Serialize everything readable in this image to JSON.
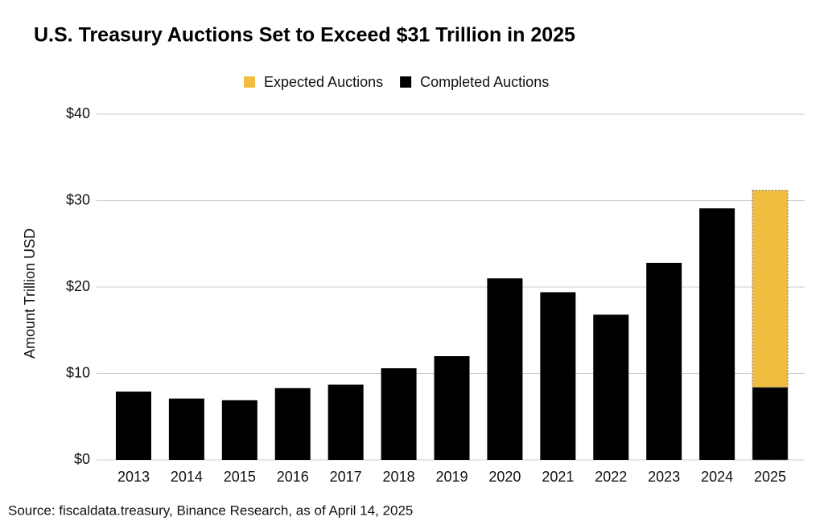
{
  "chart_data": {
    "type": "stacked_bar",
    "title": "U.S. Treasury Auctions Set to Exceed $31 Trillion in 2025",
    "y_label": "Amount Trillion USD",
    "source": "Source: fiscaldata.treasury, Binance Research, as of April 14, 2025",
    "categories": [
      "2013",
      "2014",
      "2015",
      "2016",
      "2017",
      "2018",
      "2019",
      "2020",
      "2021",
      "2022",
      "2023",
      "2024",
      "2025"
    ],
    "series": [
      {
        "name": "Expected Auctions",
        "color": "#f0bd40",
        "values": [
          null,
          null,
          null,
          null,
          null,
          null,
          null,
          null,
          null,
          null,
          null,
          null,
          22.8
        ]
      },
      {
        "name": "Completed Auctions",
        "color": "#000000",
        "values": [
          7.9,
          7.1,
          6.9,
          8.3,
          8.7,
          10.6,
          12.0,
          21.0,
          19.4,
          16.8,
          22.8,
          29.1,
          8.4
        ]
      }
    ],
    "ylim": [
      0,
      40
    ],
    "yticks": [
      {
        "value": 0,
        "label": "$0"
      },
      {
        "value": 10,
        "label": "$10"
      },
      {
        "value": 20,
        "label": "$20"
      },
      {
        "value": 30,
        "label": "$30"
      },
      {
        "value": 40,
        "label": "$40"
      }
    ],
    "grid": true
  }
}
